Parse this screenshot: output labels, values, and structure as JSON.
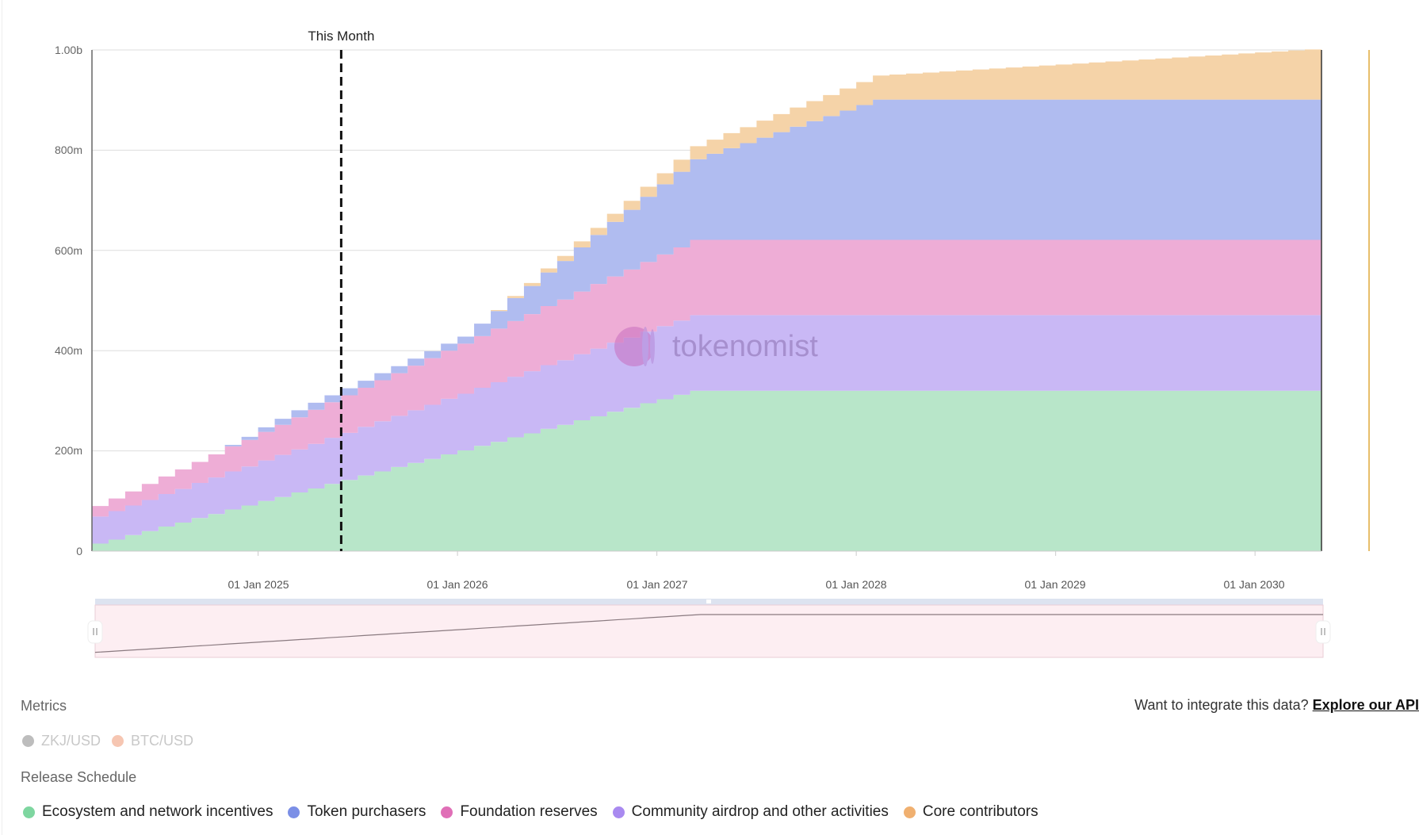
{
  "chart_data": {
    "type": "area",
    "stacked": true,
    "step": true,
    "x_start": "Mar 2024",
    "x_interval": "1 month",
    "x_ticks": [
      "01 Jan 2025",
      "01 Jan 2026",
      "01 Jan 2027",
      "01 Jan 2028",
      "01 Jan 2029",
      "01 Jan 2030"
    ],
    "x_tick_month_index": [
      10,
      22,
      34,
      46,
      58,
      70
    ],
    "y_ticks": [
      "0",
      "200m",
      "400m",
      "600m",
      "800m",
      "1.00b"
    ],
    "y_tick_values": [
      0,
      200,
      400,
      600,
      800,
      1000
    ],
    "y_unit": "millions of tokens",
    "ylim": [
      0,
      1000
    ],
    "grid": true,
    "annotation": {
      "label": "This Month",
      "month_index": 15
    },
    "series": [
      {
        "name": "Ecosystem and network incentives",
        "color": "#b8e6c9",
        "legend_color": "#7ed6a0",
        "values": [
          15,
          23,
          32,
          40,
          49,
          57,
          66,
          74,
          83,
          91,
          100,
          108,
          117,
          125,
          134,
          142,
          151,
          159,
          168,
          176,
          184,
          193,
          201,
          210,
          218,
          227,
          235,
          244,
          252,
          261,
          269,
          278,
          286,
          295,
          303,
          312,
          320,
          320,
          320,
          320,
          320,
          320,
          320,
          320,
          320,
          320,
          320,
          320,
          320,
          320,
          320,
          320,
          320,
          320,
          320,
          320,
          320,
          320,
          320,
          320,
          320,
          320,
          320,
          320,
          320,
          320,
          320,
          320,
          320,
          320,
          320,
          320,
          320,
          320
        ]
      },
      {
        "name": "Community airdrop and other activities",
        "color": "#c9b8f5",
        "legend_color": "#a98af0",
        "values": [
          54,
          57,
          59,
          62,
          65,
          67,
          70,
          73,
          76,
          78,
          81,
          84,
          86,
          89,
          92,
          94,
          97,
          100,
          102,
          105,
          108,
          111,
          113,
          116,
          119,
          121,
          124,
          127,
          129,
          132,
          135,
          138,
          140,
          143,
          146,
          148,
          151,
          151,
          151,
          151,
          151,
          151,
          151,
          151,
          151,
          151,
          151,
          151,
          151,
          151,
          151,
          151,
          151,
          151,
          151,
          151,
          151,
          151,
          151,
          151,
          151,
          151,
          151,
          151,
          151,
          151,
          151,
          151,
          151,
          151,
          151,
          151,
          151,
          151
        ]
      },
      {
        "name": "Foundation reserves",
        "color": "#eeadd6",
        "legend_color": "#e06fb7",
        "values": [
          21,
          25,
          28,
          32,
          35,
          39,
          42,
          46,
          50,
          53,
          57,
          60,
          64,
          68,
          71,
          75,
          78,
          82,
          85,
          89,
          93,
          96,
          100,
          103,
          107,
          111,
          114,
          118,
          121,
          125,
          129,
          132,
          136,
          139,
          143,
          146,
          150,
          150,
          150,
          150,
          150,
          150,
          150,
          150,
          150,
          150,
          150,
          150,
          150,
          150,
          150,
          150,
          150,
          150,
          150,
          150,
          150,
          150,
          150,
          150,
          150,
          150,
          150,
          150,
          150,
          150,
          150,
          150,
          150,
          150,
          150,
          150,
          150,
          150
        ]
      },
      {
        "name": "Token purchasers",
        "color": "#b0bcf0",
        "legend_color": "#7b8fe6",
        "values": [
          0,
          0,
          0,
          0,
          0,
          0,
          0,
          0,
          3,
          6,
          9,
          12,
          14,
          14,
          14,
          14,
          14,
          14,
          14,
          14,
          14,
          14,
          14,
          25,
          35,
          46,
          56,
          67,
          77,
          88,
          98,
          109,
          119,
          130,
          140,
          151,
          161,
          172,
          183,
          193,
          204,
          215,
          226,
          237,
          247,
          258,
          269,
          280,
          280,
          280,
          280,
          280,
          280,
          280,
          280,
          280,
          280,
          280,
          280,
          280,
          280,
          280,
          280,
          280,
          280,
          280,
          280,
          280,
          280,
          280,
          280,
          280,
          280,
          280
        ]
      },
      {
        "name": "Core contributors",
        "color": "#f5d3a8",
        "legend_color": "#f0b070",
        "values": [
          0,
          0,
          0,
          0,
          0,
          0,
          0,
          0,
          0,
          0,
          0,
          0,
          0,
          0,
          0,
          0,
          0,
          0,
          0,
          0,
          0,
          0,
          0,
          0,
          2,
          4,
          6,
          8,
          10,
          12,
          14,
          16,
          18,
          20,
          22,
          24,
          26,
          28,
          30,
          32,
          34,
          36,
          38,
          40,
          42,
          44,
          46,
          48,
          50,
          52,
          54,
          56,
          58,
          60,
          62,
          64,
          66,
          68,
          70,
          72,
          74,
          76,
          78,
          80,
          82,
          84,
          86,
          88,
          90,
          92,
          94,
          96,
          98,
          100
        ]
      }
    ]
  },
  "watermark": "tokenomist",
  "metrics": {
    "title": "Metrics",
    "items": [
      {
        "label": "ZKJ/USD",
        "color": "#bdbdbd"
      },
      {
        "label": "BTC/USD",
        "color": "#f6c6b2"
      }
    ]
  },
  "api": {
    "prompt": "Want to integrate this data?",
    "link": "Explore our API"
  },
  "release_schedule": {
    "title": "Release Schedule",
    "legend": [
      "Ecosystem and network incentives",
      "Token purchasers",
      "Foundation reserves",
      "Community airdrop and other activities",
      "Core contributors"
    ]
  },
  "colors": {
    "marker_line": "#e0a83a",
    "navigator_fill": "#fdeef2",
    "navigator_bar": "#dde3f0"
  }
}
